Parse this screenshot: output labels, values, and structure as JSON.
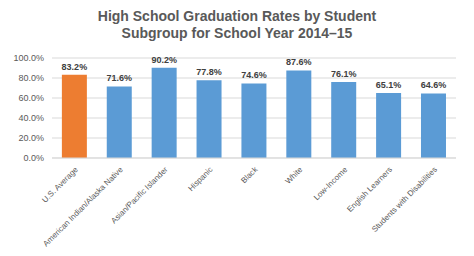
{
  "chart_data": {
    "type": "bar",
    "title": "High School Graduation Rates by Student Subgroup for School Year 2014–15",
    "categories": [
      "U.S. Average",
      "American Indian/Alaska Native",
      "Asian/Pacific Islander",
      "Hispanic",
      "Black",
      "White",
      "Low-Income",
      "English Learners",
      "Students with Disabilities"
    ],
    "values": [
      83.2,
      71.6,
      90.2,
      77.8,
      74.6,
      87.6,
      76.1,
      65.1,
      64.6
    ],
    "value_labels": [
      "83.2%",
      "71.6%",
      "90.2%",
      "77.8%",
      "74.6%",
      "87.6%",
      "76.1%",
      "65.1%",
      "64.6%"
    ],
    "colors": [
      "#ed7d31",
      "#5b9bd5",
      "#5b9bd5",
      "#5b9bd5",
      "#5b9bd5",
      "#5b9bd5",
      "#5b9bd5",
      "#5b9bd5",
      "#5b9bd5"
    ],
    "ylim": [
      0,
      100
    ],
    "yticks": [
      {
        "value": 0,
        "label": "0.0%"
      },
      {
        "value": 20,
        "label": "20.0%"
      },
      {
        "value": 40,
        "label": "40.0%"
      },
      {
        "value": 60,
        "label": "60.0%"
      },
      {
        "value": 80,
        "label": "80.0%"
      },
      {
        "value": 100,
        "label": "100.0%"
      }
    ],
    "grid": true,
    "data_labels": true
  }
}
